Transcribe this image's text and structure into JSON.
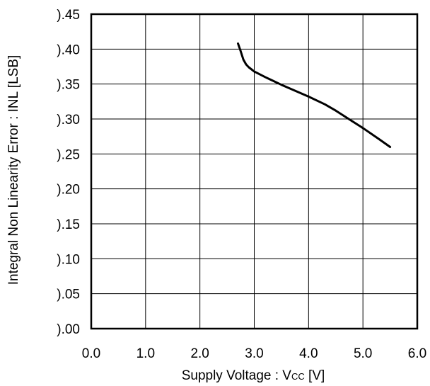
{
  "chart_data": {
    "type": "line",
    "xlabel": "Supply Voltage : Vcc [V]",
    "xlabel_parts": {
      "main": "Supply Voltage : V",
      "sub": "CC",
      "unit": " [V]"
    },
    "ylabel": "Integral Non Linearity Error : INL [LSB]",
    "xlim": [
      0.0,
      6.0
    ],
    "ylim": [
      0.0,
      0.45
    ],
    "xticks": [
      "0.0",
      "1.0",
      "2.0",
      "3.0",
      "4.0",
      "5.0",
      "6.0"
    ],
    "yticks": [
      ").00",
      ").05",
      ").10",
      ").15",
      ").20",
      ").25",
      ").30",
      ").35",
      ").40",
      ").45"
    ],
    "grid": true,
    "series": [
      {
        "color": "#000000",
        "x": [
          2.7,
          2.75,
          2.8,
          2.85,
          2.9,
          3.0,
          3.2,
          3.5,
          4.0,
          4.3,
          4.5,
          4.8,
          5.0,
          5.3,
          5.5
        ],
        "y": [
          0.408,
          0.397,
          0.385,
          0.378,
          0.374,
          0.368,
          0.36,
          0.349,
          0.332,
          0.321,
          0.312,
          0.297,
          0.287,
          0.271,
          0.26
        ]
      }
    ]
  }
}
